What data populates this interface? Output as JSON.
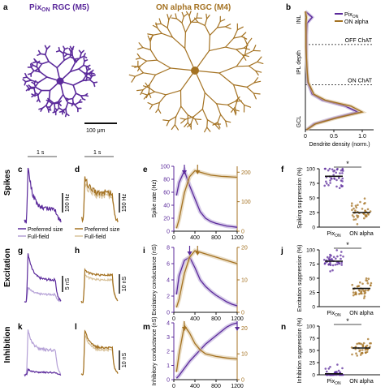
{
  "panel_letters": {
    "a": "a",
    "b": "b",
    "c": "c",
    "d": "d",
    "e": "e",
    "f": "f",
    "g": "g",
    "h": "h",
    "i": "i",
    "j": "j",
    "k": "k",
    "l": "l",
    "m": "m",
    "n": "n"
  },
  "colors": {
    "pix": "#5b2a9b",
    "pix_light": "#b4a0d6",
    "alpha": "#a47222",
    "alpha_light": "#d8c29a"
  },
  "panel_a": {
    "pix_title_main": "Pix",
    "pix_title_sub": "ON",
    "pix_title_tail": " RGC (M5)",
    "alpha_title": "ON alpha RGC (M4)",
    "scale_bar_label": "100 μm"
  },
  "row_labels": {
    "spikes": "Spikes",
    "excitation": "Excitation",
    "inhibition": "Inhibition"
  },
  "traces": {
    "time_bar_label": "1 s",
    "c_scale": "100 Hz",
    "d_scale": "150 Hz",
    "g_scale": "5 nS",
    "h_scale": "10 nS",
    "l_scale": "10 nS",
    "legend_c": [
      "Preferred size",
      "Full-field"
    ],
    "legend_d": [
      "Preferred size",
      "Full-field"
    ]
  },
  "chart_data": [
    {
      "panel": "b",
      "type": "line",
      "xlabel": "Dendrite density (norm.)",
      "ylabel": "IPL depth",
      "xlim": [
        0,
        1.2
      ],
      "x_ticks": [
        "0",
        "0.5",
        "1.0"
      ],
      "y_labels_top": "INL",
      "y_labels_bottom": "GCL",
      "reference_lines": [
        {
          "label": "OFF ChAT",
          "depth": 0.28
        },
        {
          "label": "ON ChAT",
          "depth": 0.62
        }
      ],
      "depth": [
        0.0,
        0.05,
        0.1,
        0.2,
        0.3,
        0.4,
        0.5,
        0.6,
        0.7,
        0.75,
        0.8,
        0.85,
        0.9,
        0.95,
        1.0
      ],
      "series": [
        {
          "name": "Pix",
          "name_sub": "ON",
          "values": [
            0.0,
            0.12,
            0.03,
            0.02,
            0.02,
            0.02,
            0.03,
            0.04,
            0.12,
            0.3,
            0.7,
            0.92,
            0.5,
            0.15,
            0.02
          ]
        },
        {
          "name": "ON alpha",
          "values": [
            0.0,
            0.02,
            0.01,
            0.01,
            0.01,
            0.02,
            0.03,
            0.05,
            0.15,
            0.35,
            0.8,
            1.0,
            0.55,
            0.18,
            0.02
          ]
        }
      ]
    },
    {
      "panel": "e",
      "type": "line",
      "xlabel": "",
      "ylabel_left": "Spike rate (Hz)",
      "ylim_left": [
        0,
        100
      ],
      "y_ticks_left": [
        "0",
        "20",
        "40",
        "60",
        "80",
        "100"
      ],
      "ylim_right": [
        0,
        220
      ],
      "y_ticks_right": [
        "0",
        "100",
        "200"
      ],
      "xlim": [
        0,
        1200
      ],
      "x_ticks": [
        "0",
        "400",
        "800",
        "1200"
      ],
      "x": [
        50,
        100,
        200,
        300,
        400,
        500,
        600,
        700,
        800,
        900,
        1000,
        1100,
        1200
      ],
      "series": [
        {
          "name": "Pix",
          "axis": "left",
          "values": [
            55,
            75,
            93,
            70,
            50,
            30,
            20,
            15,
            12,
            10,
            8,
            7,
            6
          ]
        },
        {
          "name": "ON alpha",
          "axis": "right",
          "values": [
            10,
            40,
            130,
            185,
            205,
            200,
            195,
            190,
            188,
            186,
            185,
            184,
            183
          ]
        }
      ],
      "arrows": [
        {
          "series": "Pix",
          "x": 200
        },
        {
          "series": "ON alpha",
          "x": 450
        }
      ]
    },
    {
      "panel": "i",
      "type": "line",
      "ylabel_left": "Excitatory conductance (nS)",
      "ylim_left": [
        0,
        8
      ],
      "y_ticks_left": [
        "0",
        "2",
        "4",
        "6",
        "8"
      ],
      "ylim_right": [
        0,
        20
      ],
      "y_ticks_right": [
        "0",
        "10",
        "20"
      ],
      "xlim": [
        0,
        1200
      ],
      "x_ticks": [
        "0",
        "400",
        "800",
        "1200"
      ],
      "x": [
        50,
        100,
        200,
        300,
        400,
        500,
        600,
        700,
        800,
        900,
        1000,
        1100,
        1200
      ],
      "series": [
        {
          "name": "Pix",
          "axis": "left",
          "values": [
            2.2,
            4.5,
            6.4,
            6.8,
            5.5,
            4.0,
            3.2,
            2.6,
            2.1,
            1.7,
            1.3,
            1.0,
            0.8
          ]
        },
        {
          "name": "ON alpha",
          "axis": "right",
          "values": [
            1.5,
            4,
            12,
            17,
            19,
            18.5,
            18,
            17.5,
            17,
            16.5,
            16,
            15.5,
            15
          ]
        }
      ],
      "arrows": [
        {
          "series": "Pix",
          "x": 300
        },
        {
          "series": "ON alpha",
          "x": 450
        }
      ]
    },
    {
      "panel": "m",
      "type": "line",
      "xlabel": "Spot size (μm)",
      "ylabel_left": "Inhibitory conductance (nS)",
      "ylim_left": [
        0,
        4
      ],
      "y_ticks_left": [
        "0",
        "1",
        "2",
        "3",
        "4"
      ],
      "ylim_right": [
        0,
        22
      ],
      "y_ticks_right": [
        "0",
        "10",
        "20"
      ],
      "xlim": [
        0,
        1200
      ],
      "x_ticks": [
        "0",
        "400",
        "800",
        "1200"
      ],
      "x": [
        50,
        100,
        200,
        300,
        400,
        500,
        600,
        700,
        800,
        900,
        1000,
        1100,
        1200
      ],
      "series": [
        {
          "name": "Pix",
          "axis": "left",
          "values": [
            0.1,
            0.3,
            0.8,
            1.3,
            1.7,
            2.1,
            2.5,
            2.8,
            3.1,
            3.4,
            3.7,
            3.9,
            4.0
          ]
        },
        {
          "name": "ON alpha",
          "axis": "right",
          "values": [
            3,
            10,
            21,
            18,
            14,
            11.5,
            10,
            9.5,
            9,
            8.7,
            8.4,
            8.2,
            8
          ]
        }
      ],
      "arrows": [
        {
          "series": "ON alpha",
          "x": 200
        },
        {
          "series": "Pix",
          "x": 1200
        }
      ]
    },
    {
      "panel": "f",
      "type": "scatter",
      "ylabel": "Spiking suppression (%)",
      "ylim": [
        0,
        100
      ],
      "y_ticks": [
        "0",
        "25",
        "50",
        "75",
        "100"
      ],
      "categories": [
        "Pix",
        "ON alpha"
      ],
      "category_sub": [
        "ON",
        ""
      ],
      "means": [
        87,
        25
      ],
      "significance": "*"
    },
    {
      "panel": "j",
      "type": "scatter",
      "ylabel": "Excitation suppression (%)",
      "ylim": [
        0,
        100
      ],
      "y_ticks": [
        "0",
        "25",
        "50",
        "75",
        "100"
      ],
      "categories": [
        "Pix",
        "ON alpha"
      ],
      "category_sub": [
        "ON",
        ""
      ],
      "means": [
        80,
        32
      ],
      "significance": "*"
    },
    {
      "panel": "n",
      "type": "scatter",
      "ylabel": "Inhibition suppression (%)",
      "ylim": [
        0,
        100
      ],
      "y_ticks": [
        "0",
        "25",
        "50",
        "75",
        "100"
      ],
      "categories": [
        "Pix",
        "ON alpha"
      ],
      "category_sub": [
        "ON",
        ""
      ],
      "means": [
        2,
        55
      ],
      "significance": "*"
    }
  ]
}
